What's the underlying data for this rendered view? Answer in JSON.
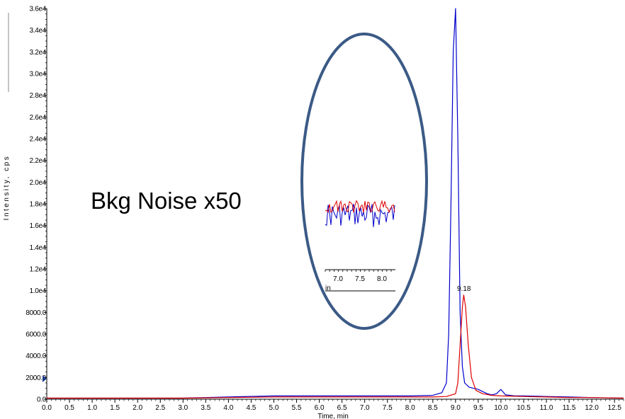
{
  "chart_data": {
    "type": "line",
    "title": "",
    "xlabel": "Time, min",
    "ylabel": "Intensity, cps",
    "xlim": [
      0.0,
      12.7
    ],
    "ylim": [
      0,
      36000
    ],
    "x_ticks": [
      "0.0",
      "0.5",
      "1.0",
      "1.5",
      "2.0",
      "2.5",
      "3.0",
      "3.5",
      "4.0",
      "4.5",
      "5.0",
      "5.5",
      "6.0",
      "6.5",
      "7.0",
      "7.5",
      "8.0",
      "8.5",
      "9.0",
      "9.5",
      "10.0",
      "10.5",
      "11.0",
      "11.5",
      "12.0",
      "12.5"
    ],
    "y_ticks": [
      "0.0",
      "2000.0",
      "4000.0",
      "6000.0",
      "8000.0",
      "1.0e4",
      "1.2e4",
      "1.4e4",
      "1.6e4",
      "1.8e4",
      "2.0e4",
      "2.2e4",
      "2.4e4",
      "2.6e4",
      "2.8e4",
      "3.0e4",
      "3.2e4",
      "3.4e4",
      "3.6e4"
    ],
    "series": [
      {
        "color": "#0000cc",
        "x": [
          0.0,
          3.0,
          4.0,
          5.0,
          6.0,
          7.0,
          8.0,
          8.5,
          8.7,
          8.8,
          8.85,
          8.9,
          8.95,
          9.0,
          9.05,
          9.1,
          9.15,
          9.2,
          9.3,
          9.4,
          9.5,
          9.6,
          9.7,
          9.8,
          9.9,
          10.0,
          10.1,
          10.3,
          10.5,
          11.0,
          11.5,
          12.0,
          12.7
        ],
        "y": [
          100,
          100,
          200,
          300,
          300,
          300,
          300,
          350,
          600,
          1500,
          6000,
          18000,
          32000,
          36000,
          24000,
          8000,
          3000,
          1500,
          1100,
          1000,
          900,
          700,
          500,
          400,
          500,
          900,
          400,
          300,
          300,
          250,
          200,
          150,
          100
        ]
      },
      {
        "color": "#dd0000",
        "x": [
          0.0,
          3.0,
          4.0,
          5.0,
          6.0,
          7.0,
          8.0,
          8.5,
          8.8,
          9.0,
          9.05,
          9.1,
          9.15,
          9.18,
          9.22,
          9.28,
          9.35,
          9.45,
          9.6,
          9.8,
          10.0,
          10.5,
          11.0,
          11.5,
          12.0,
          12.7
        ],
        "y": [
          100,
          100,
          150,
          200,
          200,
          200,
          200,
          200,
          250,
          500,
          1500,
          5000,
          8500,
          9600,
          8500,
          5000,
          2000,
          800,
          500,
          350,
          300,
          250,
          200,
          150,
          150,
          100
        ]
      }
    ],
    "annotations": [
      {
        "text": "Bkg Noise x50"
      },
      {
        "text": "9.18"
      }
    ],
    "inset": {
      "x_ticks": [
        "7.0",
        "7.5",
        "8.0"
      ],
      "xlim": [
        6.5,
        8.3
      ],
      "xlabel_fragment": "in",
      "note": ""
    }
  }
}
